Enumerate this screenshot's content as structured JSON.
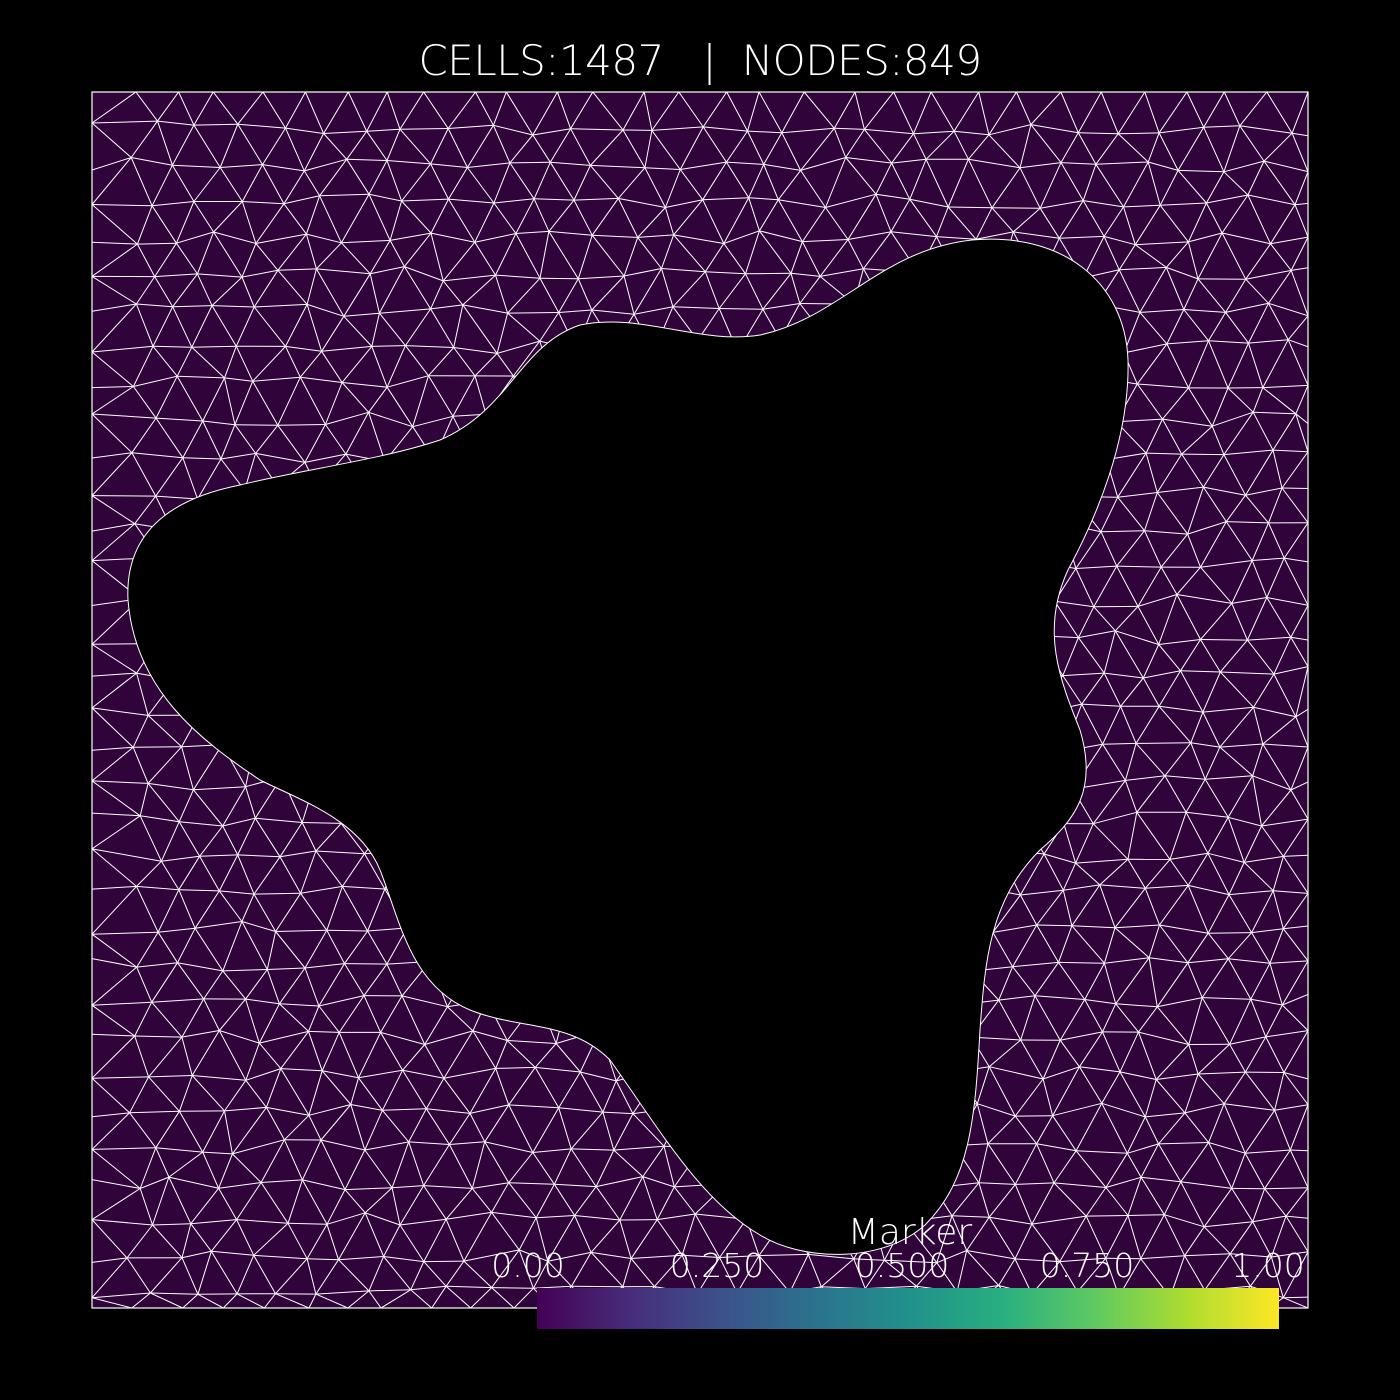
{
  "header": {
    "cells_label": "CELLS:",
    "cells_value": "1487",
    "nodes_label": "NODES:",
    "nodes_value": "849",
    "title_text": "CELLS:1487   |  NODES:849"
  },
  "mesh": {
    "domain_fill": "#30033b",
    "edge_color": "#ffffff",
    "hole_fill": "#000000",
    "cell_count": 1487,
    "node_count": 849
  },
  "colorbar": {
    "title": "Marker",
    "colormap": "viridis",
    "range": [
      0,
      1
    ],
    "tick_labels": [
      "0.00",
      "0.250",
      "0.500",
      "0.750",
      "1.00"
    ],
    "tick_values": [
      0,
      0.25,
      0.5,
      0.75,
      1
    ],
    "colors": [
      "#440154",
      "#3b528b",
      "#21918c",
      "#5ec962",
      "#fde725"
    ]
  }
}
